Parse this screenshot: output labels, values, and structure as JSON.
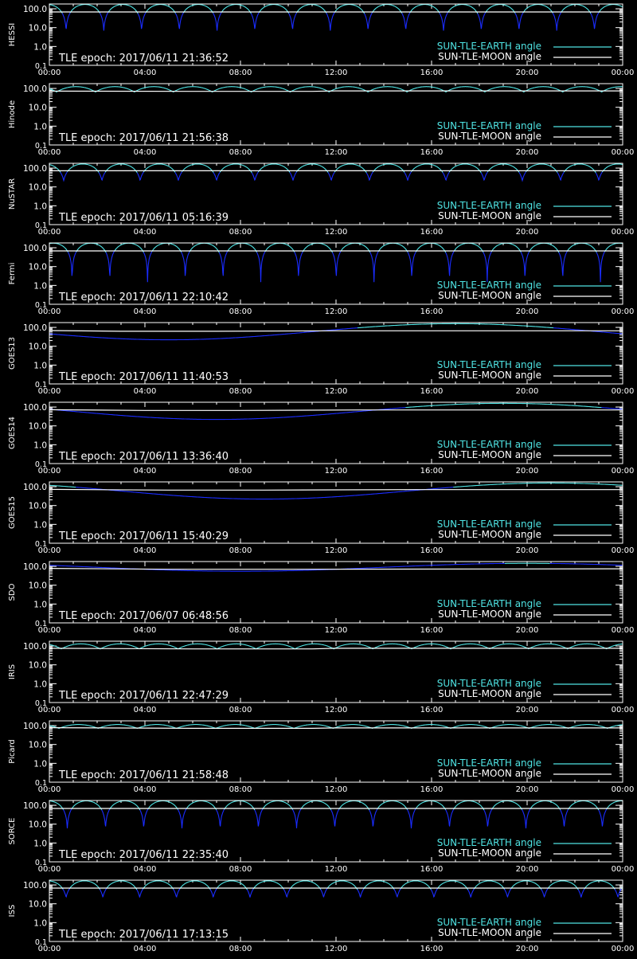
{
  "colors": {
    "background": "#000000",
    "axes": "#ffffff",
    "earth_angle": "#4fe3e3",
    "moon_angle": "#ffffff",
    "earth_angle_dip": "#1a2cff"
  },
  "chart_data": [
    {
      "type": "line",
      "ylabel": "HESSI",
      "epoch_text": "TLE epoch: 2017/06/11 21:36:52",
      "yscale": "log",
      "ylim": [
        0.1,
        180
      ],
      "xlim": [
        0,
        24
      ],
      "x_unit": "hours",
      "x_ticks": [
        "00:00",
        "04:00",
        "08:00",
        "12:00",
        "16:00",
        "20:00",
        "00:00"
      ],
      "y_ticks": [
        "0.1",
        "1.0",
        "10.0",
        "100.0"
      ],
      "legend_position": "bottom-right",
      "series": [
        {
          "name": "SUN-TLE-EARTH angle",
          "color": "#4fe3e3",
          "shape": "orbit",
          "period_h": 1.58,
          "min": 7,
          "max": 170,
          "phase_h": 0.7
        },
        {
          "name": "SUN-TLE-MOON angle",
          "color": "#ffffff",
          "shape": "line",
          "x": [
            0,
            24
          ],
          "y": [
            68,
            68
          ]
        }
      ]
    },
    {
      "type": "line",
      "ylabel": "Hinode",
      "epoch_text": "TLE epoch: 2017/06/11 21:56:38",
      "yscale": "log",
      "ylim": [
        0.1,
        180
      ],
      "xlim": [
        0,
        24
      ],
      "x_unit": "hours",
      "x_ticks": [
        "00:00",
        "04:00",
        "08:00",
        "12:00",
        "16:00",
        "20:00",
        "00:00"
      ],
      "y_ticks": [
        "0.1",
        "1.0",
        "10.0",
        "100.0"
      ],
      "legend_position": "bottom-right",
      "series": [
        {
          "name": "SUN-TLE-EARTH angle",
          "color": "#4fe3e3",
          "shape": "orbit",
          "period_h": 1.63,
          "min": 65,
          "max": 125,
          "phase_h": 0.3
        },
        {
          "name": "SUN-TLE-MOON angle",
          "color": "#ffffff",
          "shape": "line",
          "x": [
            0,
            6,
            11,
            12,
            24
          ],
          "y": [
            72,
            70,
            70,
            74,
            74
          ]
        }
      ]
    },
    {
      "type": "line",
      "ylabel": "NuSTAR",
      "epoch_text": "TLE epoch: 2017/06/11 05:16:39",
      "yscale": "log",
      "ylim": [
        0.1,
        180
      ],
      "xlim": [
        0,
        24
      ],
      "x_unit": "hours",
      "x_ticks": [
        "00:00",
        "04:00",
        "08:00",
        "12:00",
        "16:00",
        "20:00",
        "00:00"
      ],
      "y_ticks": [
        "0.1",
        "1.0",
        "10.0",
        "100.0"
      ],
      "legend_position": "bottom-right",
      "series": [
        {
          "name": "SUN-TLE-EARTH angle",
          "color": "#4fe3e3",
          "shape": "orbit",
          "period_h": 1.6,
          "min": 22,
          "max": 165,
          "phase_h": 0.6
        },
        {
          "name": "SUN-TLE-MOON angle",
          "color": "#ffffff",
          "shape": "line",
          "x": [
            0,
            24
          ],
          "y": [
            72,
            72
          ]
        }
      ]
    },
    {
      "type": "line",
      "ylabel": "Fermi",
      "epoch_text": "TLE epoch: 2017/06/11 22:10:42",
      "yscale": "log",
      "ylim": [
        0.1,
        180
      ],
      "xlim": [
        0,
        24
      ],
      "x_unit": "hours",
      "x_ticks": [
        "00:00",
        "04:00",
        "08:00",
        "12:00",
        "16:00",
        "20:00",
        "00:00"
      ],
      "y_ticks": [
        "0.1",
        "1.0",
        "10.0",
        "100.0"
      ],
      "legend_position": "bottom-right",
      "series": [
        {
          "name": "SUN-TLE-EARTH angle",
          "color": "#4fe3e3",
          "shape": "orbit",
          "period_h": 1.58,
          "min": 1.5,
          "max": 175,
          "phase_h": 0.95
        },
        {
          "name": "SUN-TLE-MOON angle",
          "color": "#ffffff",
          "shape": "line",
          "x": [
            0,
            24
          ],
          "y": [
            68,
            68
          ]
        }
      ]
    },
    {
      "type": "line",
      "ylabel": "GOES13",
      "epoch_text": "TLE epoch: 2017/06/11 11:40:53",
      "yscale": "log",
      "ylim": [
        0.1,
        180
      ],
      "xlim": [
        0,
        24
      ],
      "x_unit": "hours",
      "x_ticks": [
        "00:00",
        "04:00",
        "08:00",
        "12:00",
        "16:00",
        "20:00",
        "00:00"
      ],
      "y_ticks": [
        "0.1",
        "1.0",
        "10.0",
        "100.0"
      ],
      "legend_position": "bottom-right",
      "series": [
        {
          "name": "SUN-TLE-EARTH angle",
          "color": "#4fe3e3",
          "shape": "geo",
          "period_h": 24,
          "min": 22,
          "max": 158,
          "min_at_h": 5
        },
        {
          "name": "SUN-TLE-MOON angle",
          "color": "#ffffff",
          "shape": "line",
          "x": [
            0,
            3,
            7,
            12,
            24
          ],
          "y": [
            68,
            62,
            62,
            66,
            66
          ]
        }
      ]
    },
    {
      "type": "line",
      "ylabel": "GOES14",
      "epoch_text": "TLE epoch: 2017/06/11 13:36:40",
      "yscale": "log",
      "ylim": [
        0.1,
        180
      ],
      "xlim": [
        0,
        24
      ],
      "x_unit": "hours",
      "x_ticks": [
        "00:00",
        "04:00",
        "08:00",
        "12:00",
        "16:00",
        "20:00",
        "00:00"
      ],
      "y_ticks": [
        "0.1",
        "1.0",
        "10.0",
        "100.0"
      ],
      "legend_position": "bottom-right",
      "series": [
        {
          "name": "SUN-TLE-EARTH angle",
          "color": "#4fe3e3",
          "shape": "geo",
          "period_h": 24,
          "min": 22,
          "max": 158,
          "min_at_h": 7
        },
        {
          "name": "SUN-TLE-MOON angle",
          "color": "#ffffff",
          "shape": "line",
          "x": [
            0,
            4,
            8,
            13,
            24
          ],
          "y": [
            72,
            66,
            66,
            70,
            70
          ]
        }
      ]
    },
    {
      "type": "line",
      "ylabel": "GOES15",
      "epoch_text": "TLE epoch: 2017/06/11 15:40:29",
      "yscale": "log",
      "ylim": [
        0.1,
        180
      ],
      "xlim": [
        0,
        24
      ],
      "x_unit": "hours",
      "x_ticks": [
        "00:00",
        "04:00",
        "08:00",
        "12:00",
        "16:00",
        "20:00",
        "00:00"
      ],
      "y_ticks": [
        "0.1",
        "1.0",
        "10.0",
        "100.0"
      ],
      "legend_position": "bottom-right",
      "series": [
        {
          "name": "SUN-TLE-EARTH angle",
          "color": "#4fe3e3",
          "shape": "geo",
          "period_h": 24,
          "min": 22,
          "max": 158,
          "min_at_h": 9
        },
        {
          "name": "SUN-TLE-MOON angle",
          "color": "#ffffff",
          "shape": "line",
          "x": [
            0,
            5,
            9,
            15,
            24
          ],
          "y": [
            72,
            66,
            66,
            70,
            70
          ]
        }
      ]
    },
    {
      "type": "line",
      "ylabel": "SDO",
      "epoch_text": "TLE epoch: 2017/06/07 06:48:56",
      "yscale": "log",
      "ylim": [
        0.1,
        180
      ],
      "xlim": [
        0,
        24
      ],
      "x_unit": "hours",
      "x_ticks": [
        "00:00",
        "04:00",
        "08:00",
        "12:00",
        "16:00",
        "20:00",
        "00:00"
      ],
      "y_ticks": [
        "0.1",
        "1.0",
        "10.0",
        "100.0"
      ],
      "legend_position": "bottom-right",
      "series": [
        {
          "name": "SUN-TLE-EARTH angle",
          "color": "#4fe3e3",
          "shape": "geo",
          "period_h": 24,
          "min": 55,
          "max": 145,
          "min_at_h": 8
        },
        {
          "name": "SUN-TLE-MOON angle",
          "color": "#ffffff",
          "shape": "line",
          "x": [
            0,
            5,
            10,
            24
          ],
          "y": [
            78,
            70,
            70,
            74
          ]
        }
      ]
    },
    {
      "type": "line",
      "ylabel": "IRIS",
      "epoch_text": "TLE epoch: 2017/06/11 22:47:29",
      "yscale": "log",
      "ylim": [
        0.1,
        180
      ],
      "xlim": [
        0,
        24
      ],
      "x_unit": "hours",
      "x_ticks": [
        "00:00",
        "04:00",
        "08:00",
        "12:00",
        "16:00",
        "20:00",
        "00:00"
      ],
      "y_ticks": [
        "0.1",
        "1.0",
        "10.0",
        "100.0"
      ],
      "legend_position": "bottom-right",
      "series": [
        {
          "name": "SUN-TLE-EARTH angle",
          "color": "#4fe3e3",
          "shape": "orbit",
          "period_h": 1.63,
          "min": 70,
          "max": 130,
          "phase_h": 0.5
        },
        {
          "name": "SUN-TLE-MOON angle",
          "color": "#ffffff",
          "shape": "line",
          "x": [
            0,
            6,
            11,
            12,
            24
          ],
          "y": [
            76,
            70,
            70,
            76,
            76
          ]
        }
      ]
    },
    {
      "type": "line",
      "ylabel": "Picard",
      "epoch_text": "TLE epoch: 2017/06/11 21:58:48",
      "yscale": "log",
      "ylim": [
        0.1,
        180
      ],
      "xlim": [
        0,
        24
      ],
      "x_unit": "hours",
      "x_ticks": [
        "00:00",
        "04:00",
        "08:00",
        "12:00",
        "16:00",
        "20:00",
        "00:00"
      ],
      "y_ticks": [
        "0.1",
        "1.0",
        "10.0",
        "100.0"
      ],
      "legend_position": "bottom-right",
      "series": [
        {
          "name": "SUN-TLE-EARTH angle",
          "color": "#4fe3e3",
          "shape": "orbit",
          "period_h": 1.64,
          "min": 72,
          "max": 115,
          "phase_h": 0.4
        },
        {
          "name": "SUN-TLE-MOON angle",
          "color": "#ffffff",
          "shape": "line",
          "x": [
            0,
            6,
            11,
            12,
            24
          ],
          "y": [
            78,
            72,
            72,
            76,
            76
          ]
        }
      ]
    },
    {
      "type": "line",
      "ylabel": "SORCE",
      "epoch_text": "TLE epoch: 2017/06/11 22:35:40",
      "yscale": "log",
      "ylim": [
        0.1,
        180
      ],
      "xlim": [
        0,
        24
      ],
      "x_unit": "hours",
      "x_ticks": [
        "00:00",
        "04:00",
        "08:00",
        "12:00",
        "16:00",
        "20:00",
        "00:00"
      ],
      "y_ticks": [
        "0.1",
        "1.0",
        "10.0",
        "100.0"
      ],
      "legend_position": "bottom-right",
      "series": [
        {
          "name": "SUN-TLE-EARTH angle",
          "color": "#4fe3e3",
          "shape": "orbit",
          "period_h": 1.6,
          "min": 6,
          "max": 172,
          "phase_h": 0.75
        },
        {
          "name": "SUN-TLE-MOON angle",
          "color": "#ffffff",
          "shape": "line",
          "x": [
            0,
            24
          ],
          "y": [
            68,
            68
          ]
        }
      ]
    },
    {
      "type": "line",
      "ylabel": "ISS",
      "epoch_text": "TLE epoch: 2017/06/11 17:13:15",
      "yscale": "log",
      "ylim": [
        0.1,
        180
      ],
      "xlim": [
        0,
        24
      ],
      "x_unit": "hours",
      "x_ticks": [
        "00:00",
        "04:00",
        "08:00",
        "12:00",
        "16:00",
        "20:00",
        "00:00"
      ],
      "y_ticks": [
        "0.1",
        "1.0",
        "10.0",
        "100.0"
      ],
      "legend_position": "bottom-right",
      "series": [
        {
          "name": "SUN-TLE-EARTH angle",
          "color": "#4fe3e3",
          "shape": "orbit",
          "period_h": 1.54,
          "min": 22,
          "max": 165,
          "phase_h": 0.7
        },
        {
          "name": "SUN-TLE-MOON angle",
          "color": "#ffffff",
          "shape": "line",
          "x": [
            0,
            24
          ],
          "y": [
            68,
            68
          ]
        }
      ]
    }
  ]
}
